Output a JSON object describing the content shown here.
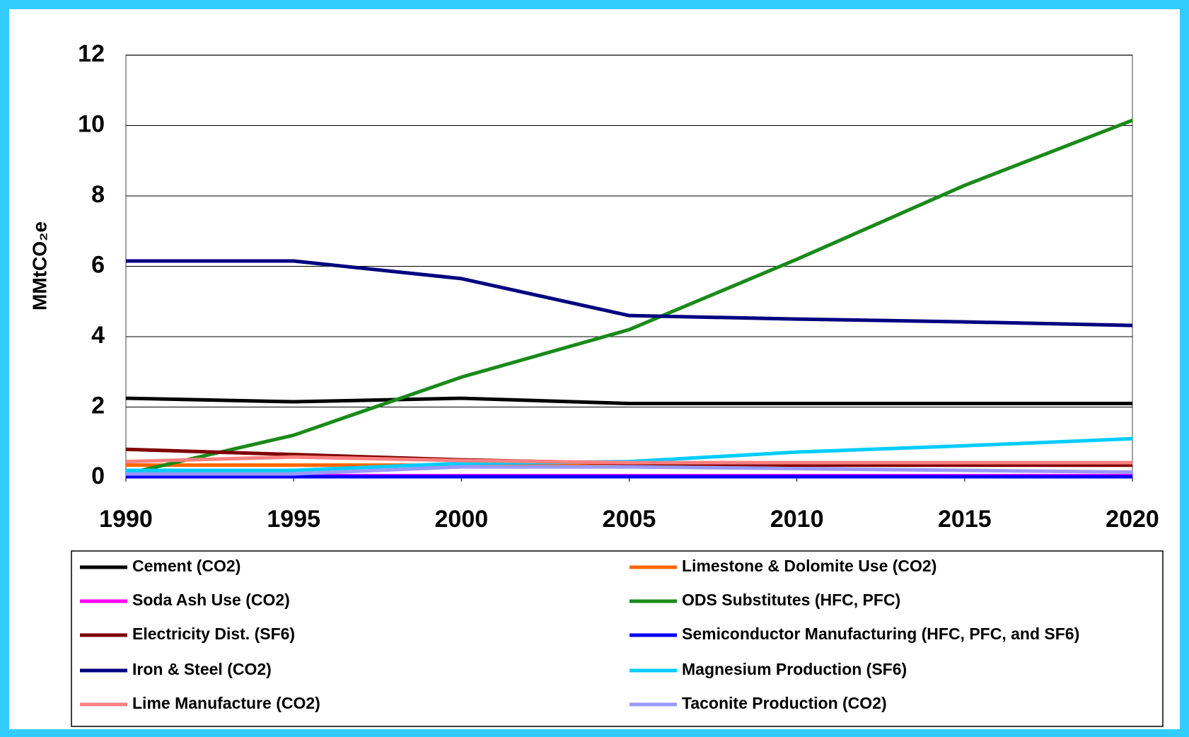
{
  "chart_data": {
    "type": "line",
    "y_label": "MMtCO₂e",
    "x": [
      1990,
      1995,
      2000,
      2005,
      2010,
      2015,
      2020
    ],
    "xlim": [
      1990,
      2020
    ],
    "xticks": [
      1990,
      1995,
      2000,
      2005,
      2010,
      2015,
      2020
    ],
    "ylim": [
      0,
      12
    ],
    "yticks": [
      0,
      2,
      4,
      6,
      8,
      10,
      12
    ],
    "grid": true,
    "legend": "bottom",
    "series": [
      {
        "name": "Cement (CO2)",
        "color": "#000000",
        "values": [
          2.25,
          2.15,
          2.25,
          2.1,
          2.1,
          2.1,
          2.1
        ]
      },
      {
        "name": "Limestone & Dolomite Use (CO2)",
        "color": "#ff6600",
        "values": [
          0.35,
          0.35,
          0.35,
          0.35,
          0.35,
          0.35,
          0.35
        ]
      },
      {
        "name": "Soda Ash Use (CO2)",
        "color": "#ff00ff",
        "values": [
          0.05,
          0.05,
          0.05,
          0.05,
          0.05,
          0.05,
          0.05
        ]
      },
      {
        "name": "ODS Substitutes (HFC, PFC)",
        "color": "#1a8a1a",
        "values": [
          0.1,
          1.2,
          2.85,
          4.2,
          6.2,
          8.3,
          10.15
        ]
      },
      {
        "name": "Electricity Dist. (SF6)",
        "color": "#800000",
        "values": [
          0.8,
          0.65,
          0.5,
          0.4,
          0.35,
          0.35,
          0.35
        ]
      },
      {
        "name": "Semiconductor Manufacturing (HFC, PFC, and SF6)",
        "color": "#0000ff",
        "values": [
          0.02,
          0.02,
          0.02,
          0.02,
          0.02,
          0.02,
          0.02
        ]
      },
      {
        "name": "Iron & Steel (CO2)",
        "color": "#000080",
        "values": [
          6.15,
          6.15,
          5.65,
          4.6,
          4.5,
          4.42,
          4.32
        ]
      },
      {
        "name": "Magnesium Production (SF6)",
        "color": "#00ccff",
        "values": [
          0.2,
          0.2,
          0.4,
          0.45,
          0.72,
          0.9,
          1.1
        ]
      },
      {
        "name": "Lime Manufacture (CO2)",
        "color": "#ff8080",
        "values": [
          0.45,
          0.58,
          0.48,
          0.42,
          0.42,
          0.42,
          0.42
        ]
      },
      {
        "name": "Taconite Production (CO2)",
        "color": "#9999ff",
        "values": [
          0.1,
          0.1,
          0.3,
          0.3,
          0.25,
          0.2,
          0.15
        ]
      }
    ]
  }
}
